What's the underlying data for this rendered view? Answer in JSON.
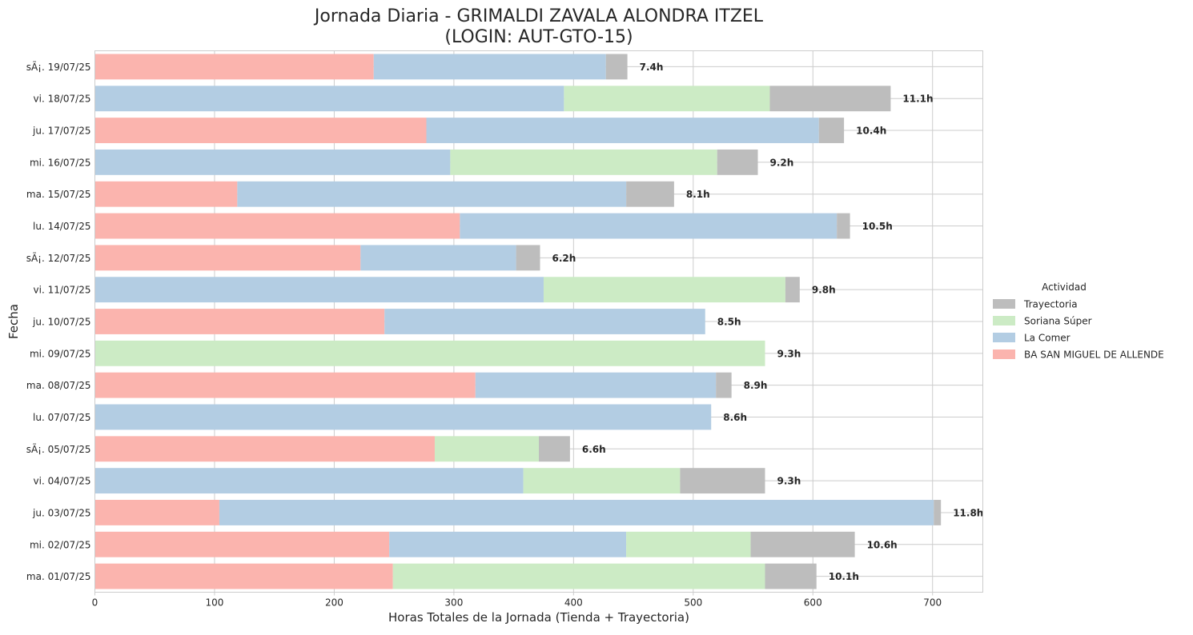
{
  "chart_data": {
    "type": "bar",
    "orientation": "horizontal",
    "stacked": true,
    "title": "Jornada Diaria - GRIMALDI ZAVALA ALONDRA ITZEL\n(LOGIN: AUT-GTO-15)",
    "xlabel": "Horas Totales de la Jornada (Tienda + Trayectoria)",
    "ylabel": "Fecha",
    "xlim": [
      0,
      742
    ],
    "xticks": [
      0,
      100,
      200,
      300,
      400,
      500,
      600,
      700
    ],
    "grid": true,
    "legend_title": "Actividad",
    "legend_position": "center-right outside",
    "categories": [
      "sÃ¡. 19/07/25",
      "vi. 18/07/25",
      "ju. 17/07/25",
      "mi. 16/07/25",
      "ma. 15/07/25",
      "lu. 14/07/25",
      "sÃ¡. 12/07/25",
      "vi. 11/07/25",
      "ju. 10/07/25",
      "mi. 09/07/25",
      "ma. 08/07/25",
      "lu. 07/07/25",
      "sÃ¡. 05/07/25",
      "vi. 04/07/25",
      "ju. 03/07/25",
      "mi. 02/07/25",
      "ma. 01/07/25"
    ],
    "series": [
      {
        "name": "BA SAN MIGUEL DE ALLENDE",
        "color": "#fbb4ae",
        "values": [
          233,
          0,
          277,
          0,
          119,
          305,
          222,
          0,
          242,
          0,
          318,
          0,
          284,
          0,
          104,
          246,
          249
        ]
      },
      {
        "name": "La Comer",
        "color": "#b3cde3",
        "values": [
          194,
          392,
          328,
          297,
          325,
          315,
          130,
          375,
          268,
          0,
          201,
          515,
          0,
          358,
          597,
          198,
          0
        ]
      },
      {
        "name": "Soriana Súper",
        "color": "#ccebc5",
        "values": [
          0,
          172,
          0,
          223,
          0,
          0,
          0,
          202,
          0,
          560,
          0,
          0,
          87,
          131,
          0,
          104,
          311
        ]
      },
      {
        "name": "Trayectoria",
        "color": "#bdbdbd",
        "values": [
          18,
          101,
          21,
          34,
          40,
          11,
          20,
          12,
          0,
          0,
          13,
          0,
          26,
          71,
          6,
          87,
          43
        ]
      }
    ],
    "totals_labels": [
      "7.4h",
      "11.1h",
      "10.4h",
      "9.2h",
      "8.1h",
      "10.5h",
      "6.2h",
      "9.8h",
      "8.5h",
      "9.3h",
      "8.9h",
      "8.6h",
      "6.6h",
      "9.3h",
      "11.8h",
      "10.6h",
      "10.1h"
    ],
    "legend_order": [
      "Trayectoria",
      "Soriana Súper",
      "La Comer",
      "BA SAN MIGUEL DE ALLENDE"
    ]
  }
}
